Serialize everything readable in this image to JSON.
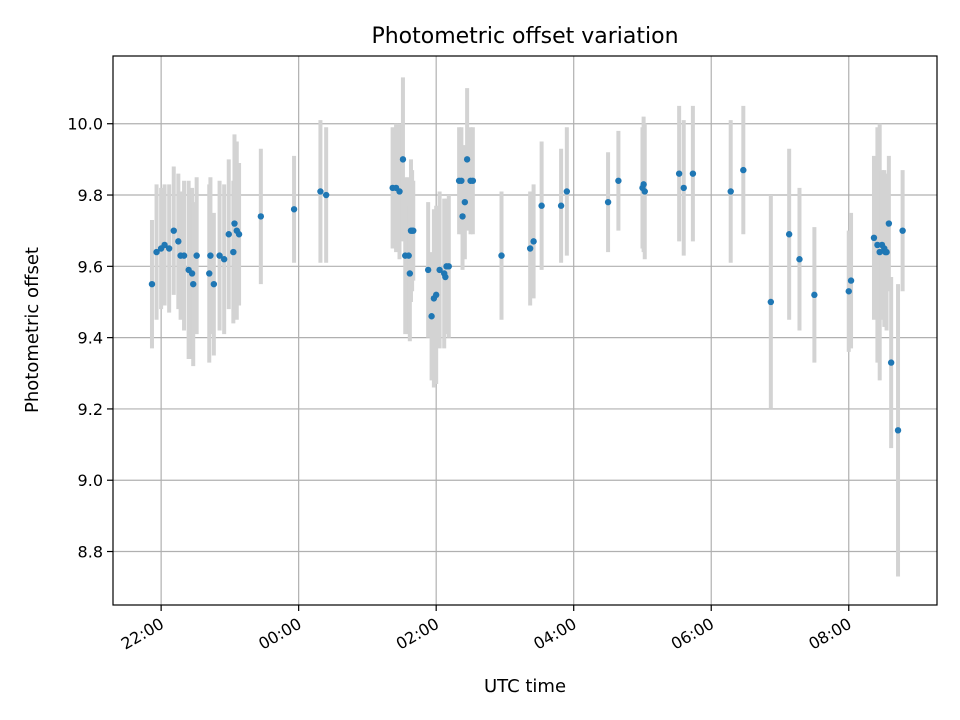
{
  "chart_data": {
    "type": "scatter",
    "title": "Photometric offset variation",
    "xlabel": "UTC time",
    "ylabel": "Photometric offset",
    "x_ticks": [
      "22:00",
      "00:00",
      "02:00",
      "04:00",
      "06:00",
      "08:00"
    ],
    "y_ticks": [
      "8.8",
      "9.0",
      "9.2",
      "9.4",
      "9.6",
      "9.8",
      "10.0"
    ],
    "xlim": [
      "21:18",
      "09:17"
    ],
    "ylim": [
      8.65,
      10.19
    ],
    "grid": true,
    "colors": {
      "point": "#1f77b4",
      "errorbar": "#d3d3d3"
    },
    "series": [
      {
        "x": [
          "21:52",
          "21:56",
          "22:00",
          "22:03",
          "22:07",
          "22:11",
          "22:15",
          "22:17",
          "22:20",
          "22:24",
          "22:27",
          "22:28",
          "22:31",
          "22:42",
          "22:43",
          "22:46",
          "22:51",
          "22:55",
          "22:59",
          "23:03",
          "23:04",
          "23:06",
          "23:08",
          "23:27",
          "23:56",
          "00:19",
          "00:24",
          "01:22",
          "01:25",
          "01:28",
          "01:31",
          "01:33",
          "01:36",
          "01:37",
          "01:38",
          "01:39",
          "01:40",
          "01:53",
          "01:56",
          "01:58",
          "02:00",
          "02:03",
          "02:07",
          "02:08",
          "02:09",
          "02:11",
          "02:20",
          "02:22",
          "02:23",
          "02:25",
          "02:27",
          "02:30",
          "02:32",
          "02:57",
          "03:22",
          "03:25",
          "03:32",
          "03:49",
          "03:54",
          "04:30",
          "04:39",
          "05:00",
          "05:01",
          "05:02",
          "05:32",
          "05:36",
          "05:44",
          "06:17",
          "06:28",
          "06:52",
          "07:08",
          "07:17",
          "07:30",
          "08:00",
          "08:02",
          "08:22",
          "08:25",
          "08:27",
          "08:29",
          "08:31",
          "08:32",
          "08:33",
          "08:35",
          "08:37",
          "08:43",
          "08:47"
        ],
        "y": [
          9.55,
          9.64,
          9.65,
          9.66,
          9.65,
          9.7,
          9.67,
          9.63,
          9.63,
          9.59,
          9.58,
          9.55,
          9.63,
          9.58,
          9.63,
          9.55,
          9.63,
          9.62,
          9.69,
          9.64,
          9.72,
          9.7,
          9.69,
          9.74,
          9.76,
          9.81,
          9.8,
          9.82,
          9.82,
          9.81,
          9.9,
          9.63,
          9.63,
          9.58,
          9.7,
          9.7,
          9.7,
          9.59,
          9.46,
          9.51,
          9.52,
          9.59,
          9.58,
          9.57,
          9.6,
          9.6,
          9.84,
          9.84,
          9.74,
          9.78,
          9.9,
          9.84,
          9.84,
          9.63,
          9.65,
          9.67,
          9.77,
          9.77,
          9.81,
          9.78,
          9.84,
          9.82,
          9.83,
          9.81,
          9.86,
          9.82,
          9.86,
          9.81,
          9.87,
          9.5,
          9.69,
          9.62,
          9.52,
          9.53,
          9.56,
          9.68,
          9.66,
          9.64,
          9.66,
          9.65,
          9.64,
          9.64,
          9.72,
          9.33,
          9.14,
          9.7
        ],
        "yerr": [
          0.18,
          0.19,
          0.17,
          0.17,
          0.18,
          0.18,
          0.19,
          0.18,
          0.21,
          0.25,
          0.24,
          0.23,
          0.22,
          0.25,
          0.22,
          0.2,
          0.21,
          0.21,
          0.21,
          0.2,
          0.25,
          0.25,
          0.2,
          0.19,
          0.15,
          0.2,
          0.19,
          0.17,
          0.18,
          0.19,
          0.23,
          0.22,
          0.22,
          0.19,
          0.2,
          0.17,
          0.14,
          0.19,
          0.18,
          0.25,
          0.25,
          0.22,
          0.21,
          0.15,
          0.19,
          0.2,
          0.15,
          0.15,
          0.15,
          0.16,
          0.2,
          0.15,
          0.15,
          0.18,
          0.16,
          0.16,
          0.18,
          0.16,
          0.18,
          0.14,
          0.14,
          0.17,
          0.19,
          0.19,
          0.19,
          0.19,
          0.19,
          0.2,
          0.18,
          0.3,
          0.24,
          0.2,
          0.19,
          0.17,
          0.19,
          0.23,
          0.33,
          0.36,
          0.21,
          0.22,
          0.21,
          0.22,
          0.19,
          0.24,
          0.41,
          0.17
        ]
      }
    ]
  }
}
